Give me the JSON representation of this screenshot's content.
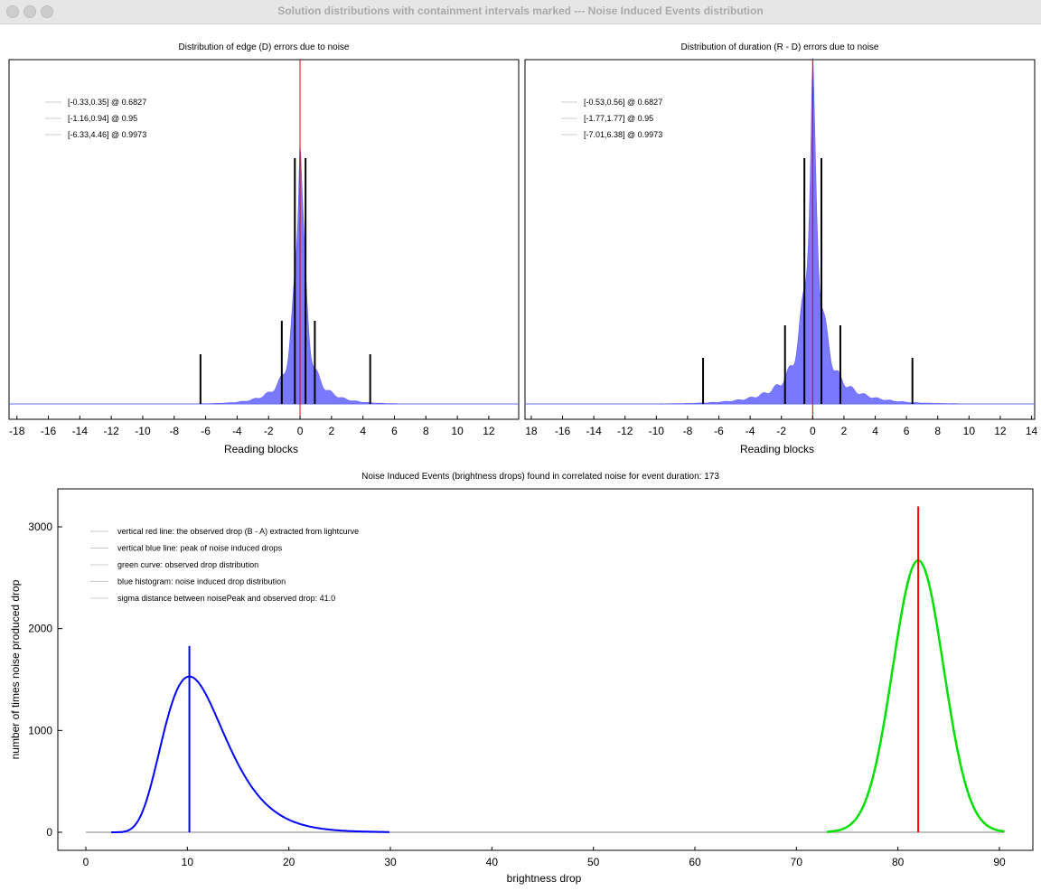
{
  "window": {
    "title": "Solution distributions with containment intervals marked --- Noise Induced Events distribution"
  },
  "chart_data": [
    {
      "type": "bar",
      "title": "Distribution of edge (D) errors due to noise",
      "xlabel": "Reading blocks",
      "xlim": [
        -18.5,
        13.9
      ],
      "xticks": [
        "-18",
        "-16",
        "-14",
        "-12",
        "-10",
        "-8",
        "-6",
        "-4",
        "-2",
        "0",
        "2",
        "4",
        "6",
        "8",
        "10",
        "12"
      ],
      "legend": [
        "[-0.33,0.35] @ 0.6827",
        "[-1.16,0.94] @ 0.95",
        "[-6.33,4.46] @ 0.9973"
      ],
      "intervals": [
        [
          -0.33,
          0.35
        ],
        [
          -1.16,
          0.94
        ],
        [
          -6.33,
          4.46
        ]
      ],
      "center": 0,
      "legend_position": "top-left"
    },
    {
      "type": "bar",
      "title": "Distribution of duration (R - D) errors due to noise",
      "xlabel": "Reading blocks",
      "xlim": [
        -18.4,
        14.2
      ],
      "xticks": [
        "18",
        "-16",
        "-14",
        "-12",
        "-10",
        "-8",
        "-6",
        "-4",
        "-2",
        "0",
        "2",
        "4",
        "6",
        "8",
        "10",
        "12",
        "14"
      ],
      "legend": [
        "[-0.53,0.56] @ 0.6827",
        "[-1.77,1.77] @ 0.95",
        "[-7.01,6.38] @ 0.9973"
      ],
      "intervals": [
        [
          -0.53,
          0.56
        ],
        [
          -1.77,
          1.77
        ],
        [
          -7.01,
          6.38
        ]
      ],
      "center": 0,
      "legend_position": "top-left"
    },
    {
      "type": "line",
      "title": "Noise Induced Events (brightness drops) found in correlated noise for event duration: 173",
      "xlabel": "brightness drop",
      "ylabel": "number of times noise produced drop",
      "xlim": [
        -3,
        93
      ],
      "ylim": [
        -170,
        3380
      ],
      "xticks": [
        "0",
        "10",
        "20",
        "30",
        "40",
        "50",
        "60",
        "70",
        "80",
        "90"
      ],
      "yticks": [
        "0",
        "1000",
        "2000",
        "3000"
      ],
      "legend": [
        "vertical red line: the observed drop (B - A) extracted from lightcurve",
        "vertical blue line: peak of noise induced drops",
        "green curve: observed drop distribution",
        "blue histogram: noise induced drop distribution",
        "sigma distance between noisePeak and observed drop: 41.0"
      ],
      "noise_peak": {
        "x": 10.2,
        "y": 1530,
        "line_top": 1830
      },
      "observed": {
        "x": 82,
        "peak": 2670,
        "sigma": 2.5,
        "line_top": 3200
      },
      "colors": {
        "noise": "#0000ff",
        "observed": "#00e000",
        "red": "#ff0000"
      },
      "legend_position": "top-left"
    }
  ]
}
